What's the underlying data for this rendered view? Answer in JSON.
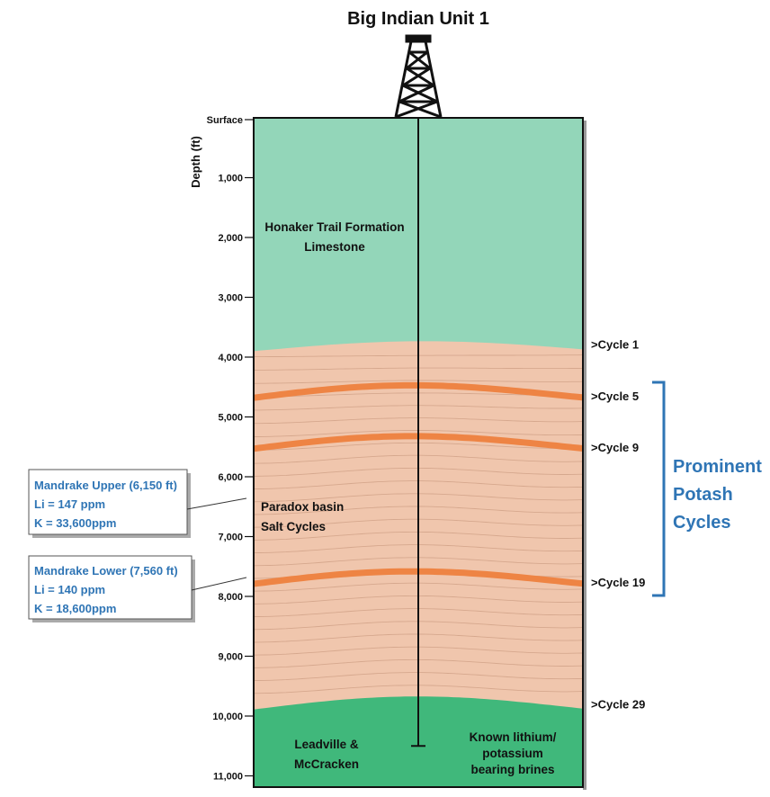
{
  "title": "Big Indian Unit 1",
  "depth_axis": {
    "label": "Depth (ft)",
    "ticks": [
      {
        "label": "Surface",
        "depth": 0
      },
      {
        "label": "1,000",
        "depth": 1000
      },
      {
        "label": "2,000",
        "depth": 2000
      },
      {
        "label": "3,000",
        "depth": 3000
      },
      {
        "label": "4,000",
        "depth": 4000
      },
      {
        "label": "5,000",
        "depth": 5000
      },
      {
        "label": "6,000",
        "depth": 6000
      },
      {
        "label": "7,000",
        "depth": 7000
      },
      {
        "label": "8,000",
        "depth": 8000
      },
      {
        "label": "9,000",
        "depth": 9000
      },
      {
        "label": "10,000",
        "depth": 10000
      },
      {
        "label": "11,000",
        "depth": 11000
      }
    ]
  },
  "layers": {
    "honaker": {
      "line1": "Honaker Trail Formation",
      "line2": "Limestone",
      "color": "#93d6b9"
    },
    "paradox": {
      "line1": "Paradox basin",
      "line2": "Salt Cycles",
      "color": "#f0c6ad"
    },
    "leadville": {
      "line1": "Leadville &",
      "line2": "McCracken",
      "color": "#40b87b"
    },
    "brines": {
      "line1": "Known lithium/",
      "line2": "potassium",
      "line3": "bearing brines"
    }
  },
  "cycles": [
    {
      "label": ">Cycle 1",
      "depth": 3780
    },
    {
      "label": ">Cycle 5",
      "depth": 4650
    },
    {
      "label": ">Cycle 9",
      "depth": 5500
    },
    {
      "label": ">Cycle 19",
      "depth": 7760
    },
    {
      "label": ">Cycle 29",
      "depth": 9800
    }
  ],
  "potash_bands": [
    4650,
    5500,
    7760
  ],
  "bracket": {
    "line1": "Prominent",
    "line2": "Potash",
    "line3": "Cycles"
  },
  "callouts": [
    {
      "line1": "Mandrake Upper (6,150 ft)",
      "line2": "Li = 147 ppm",
      "line3": "K = 33,600ppm",
      "depth": 6150
    },
    {
      "line1": "Mandrake Lower (7,560 ft)",
      "line2": "Li = 140 ppm",
      "line3": "K = 18,600ppm",
      "depth": 7560
    }
  ],
  "well_td_depth": 10500,
  "colors": {
    "potash_band": "#ee8444",
    "salt_line": "#d6a88e",
    "callout_text": "#2f75b5",
    "outline": "#111111"
  }
}
